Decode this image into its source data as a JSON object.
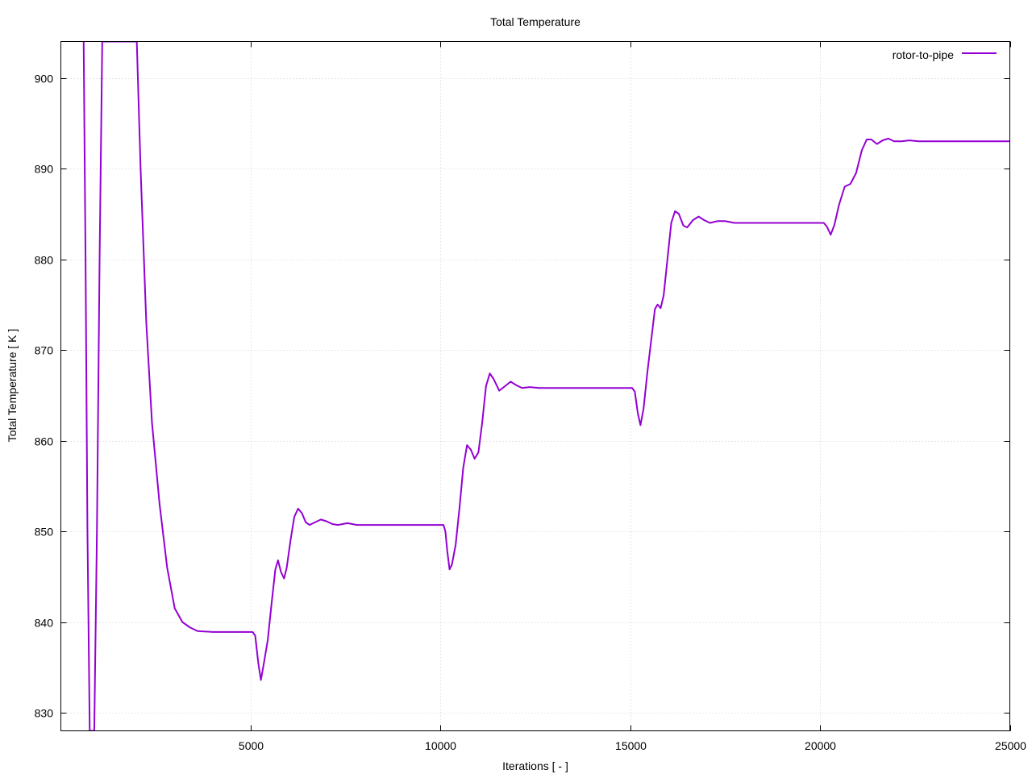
{
  "chart_data": {
    "type": "line",
    "title": "Total Temperature",
    "xlabel": "Iterations [ - ]",
    "ylabel": "Total Temperature [ K ]",
    "xlim": [
      0,
      25000
    ],
    "ylim": [
      828,
      904
    ],
    "x_ticks": [
      5000,
      10000,
      15000,
      20000,
      25000
    ],
    "y_ticks": [
      830,
      840,
      850,
      860,
      870,
      880,
      890,
      900
    ],
    "grid": true,
    "legend_position": "top-right",
    "series": [
      {
        "name": "rotor-to-pipe",
        "color": "#9400d3",
        "points": [
          [
            600,
            904
          ],
          [
            650,
            880
          ],
          [
            700,
            850
          ],
          [
            760,
            828
          ],
          [
            880,
            828
          ],
          [
            950,
            850
          ],
          [
            1020,
            880
          ],
          [
            1090,
            904
          ],
          [
            2000,
            904
          ],
          [
            2100,
            890
          ],
          [
            2250,
            873
          ],
          [
            2400,
            862
          ],
          [
            2600,
            853
          ],
          [
            2800,
            846
          ],
          [
            3000,
            841.5
          ],
          [
            3200,
            840
          ],
          [
            3400,
            839.4
          ],
          [
            3600,
            839
          ],
          [
            4000,
            838.9
          ],
          [
            4500,
            838.9
          ],
          [
            5050,
            838.9
          ],
          [
            5120,
            838.5
          ],
          [
            5200,
            835.5
          ],
          [
            5270,
            833.6
          ],
          [
            5350,
            835.5
          ],
          [
            5450,
            838
          ],
          [
            5550,
            842
          ],
          [
            5650,
            845.8
          ],
          [
            5720,
            846.8
          ],
          [
            5800,
            845.5
          ],
          [
            5880,
            844.8
          ],
          [
            5950,
            846
          ],
          [
            6050,
            849
          ],
          [
            6150,
            851.6
          ],
          [
            6250,
            852.5
          ],
          [
            6350,
            852
          ],
          [
            6450,
            851
          ],
          [
            6550,
            850.7
          ],
          [
            6700,
            851
          ],
          [
            6850,
            851.3
          ],
          [
            7000,
            851.1
          ],
          [
            7150,
            850.8
          ],
          [
            7300,
            850.7
          ],
          [
            7550,
            850.9
          ],
          [
            7800,
            850.7
          ],
          [
            8500,
            850.7
          ],
          [
            9500,
            850.7
          ],
          [
            10080,
            850.7
          ],
          [
            10130,
            850
          ],
          [
            10180,
            847.8
          ],
          [
            10240,
            845.8
          ],
          [
            10300,
            846.3
          ],
          [
            10400,
            848.5
          ],
          [
            10500,
            852.5
          ],
          [
            10600,
            857
          ],
          [
            10700,
            859.5
          ],
          [
            10800,
            859
          ],
          [
            10900,
            858
          ],
          [
            11000,
            858.7
          ],
          [
            11100,
            862
          ],
          [
            11200,
            866
          ],
          [
            11300,
            867.4
          ],
          [
            11400,
            866.8
          ],
          [
            11550,
            865.5
          ],
          [
            11700,
            866
          ],
          [
            11850,
            866.5
          ],
          [
            12000,
            866.1
          ],
          [
            12150,
            865.8
          ],
          [
            12350,
            865.9
          ],
          [
            12600,
            865.8
          ],
          [
            13000,
            865.8
          ],
          [
            14000,
            865.8
          ],
          [
            15050,
            865.8
          ],
          [
            15120,
            865.4
          ],
          [
            15200,
            863
          ],
          [
            15270,
            861.7
          ],
          [
            15350,
            863.5
          ],
          [
            15450,
            867.5
          ],
          [
            15550,
            871
          ],
          [
            15650,
            874.5
          ],
          [
            15720,
            875
          ],
          [
            15800,
            874.6
          ],
          [
            15880,
            876
          ],
          [
            15980,
            880
          ],
          [
            16080,
            884
          ],
          [
            16180,
            885.3
          ],
          [
            16280,
            885
          ],
          [
            16400,
            883.7
          ],
          [
            16500,
            883.5
          ],
          [
            16650,
            884.3
          ],
          [
            16800,
            884.7
          ],
          [
            16950,
            884.3
          ],
          [
            17100,
            884
          ],
          [
            17300,
            884.2
          ],
          [
            17500,
            884.2
          ],
          [
            17750,
            884
          ],
          [
            18500,
            884
          ],
          [
            19500,
            884
          ],
          [
            20100,
            884
          ],
          [
            20180,
            883.6
          ],
          [
            20280,
            882.7
          ],
          [
            20380,
            883.8
          ],
          [
            20500,
            886
          ],
          [
            20650,
            888
          ],
          [
            20800,
            888.3
          ],
          [
            20950,
            889.5
          ],
          [
            21100,
            892
          ],
          [
            21230,
            893.2
          ],
          [
            21350,
            893.2
          ],
          [
            21500,
            892.7
          ],
          [
            21650,
            893.1
          ],
          [
            21800,
            893.3
          ],
          [
            21950,
            893
          ],
          [
            22150,
            893
          ],
          [
            22350,
            893.1
          ],
          [
            22600,
            893
          ],
          [
            23500,
            893
          ],
          [
            25000,
            893
          ]
        ]
      }
    ]
  }
}
